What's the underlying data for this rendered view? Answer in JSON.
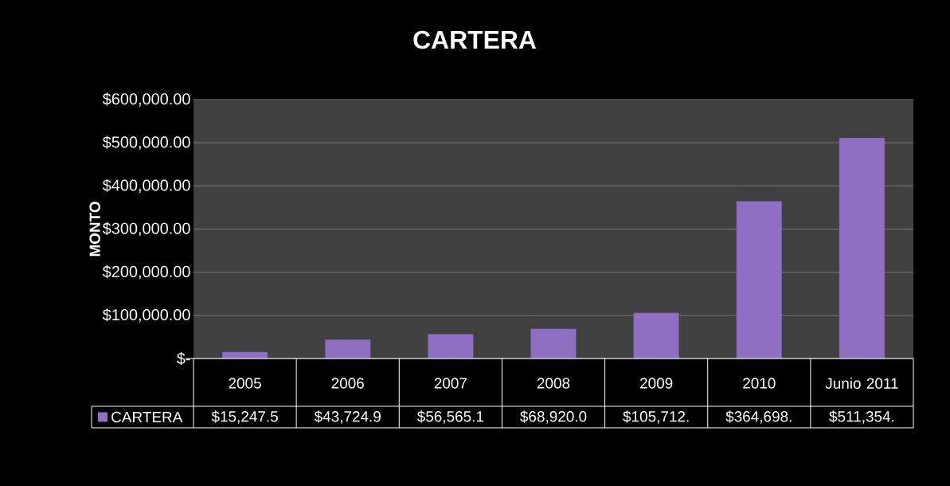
{
  "chart_data": {
    "type": "bar",
    "title": "CARTERA",
    "ylabel": "MONTO",
    "categories": [
      "2005",
      "2006",
      "2007",
      "2008",
      "2009",
      "2010",
      "Junio 2011"
    ],
    "series": [
      {
        "name": "CARTERA",
        "color": "#8f6fc1",
        "values": [
          15247.5,
          43724.9,
          56565.1,
          68920.0,
          105712,
          364698,
          511354
        ],
        "value_labels": [
          "$15,247.5",
          "$43,724.9",
          "$56,565.1",
          "$68,920.0",
          "$105,712.",
          "$364,698.",
          "$511,354."
        ]
      }
    ],
    "ylim": [
      0,
      600000
    ],
    "yticks": [
      {
        "value": 0,
        "label": "$-"
      },
      {
        "value": 100000,
        "label": "$100,000.00"
      },
      {
        "value": 200000,
        "label": "$200,000.00"
      },
      {
        "value": 300000,
        "label": "$300,000.00"
      },
      {
        "value": 400000,
        "label": "$400,000.00"
      },
      {
        "value": 500000,
        "label": "$500,000.00"
      },
      {
        "value": 600000,
        "label": "$600,000.00"
      }
    ],
    "grid": "y",
    "legend": "bottom"
  }
}
